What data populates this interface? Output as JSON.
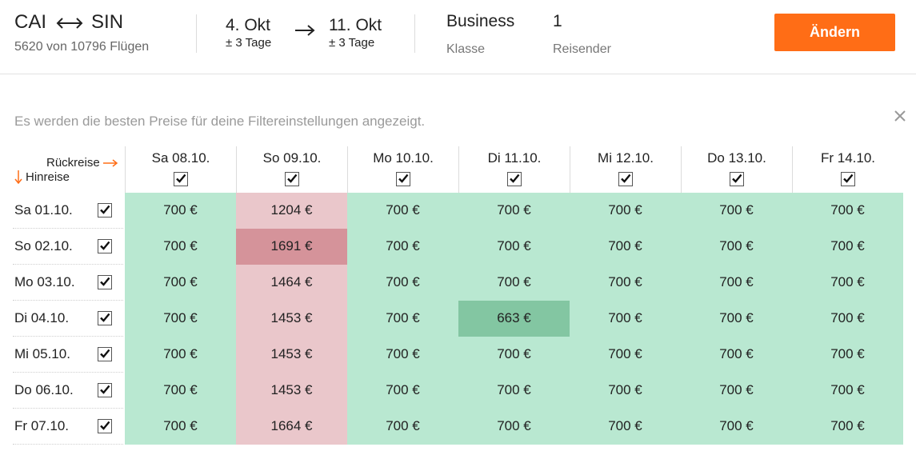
{
  "header": {
    "origin": "CAI",
    "destination": "SIN",
    "flights_count": "5620 von 10796 Flügen",
    "outbound_date": "4. Okt",
    "outbound_flex": "± 3 Tage",
    "return_date": "11. Okt",
    "return_flex": "± 3 Tage",
    "cabin_class": "Business",
    "cabin_class_label": "Klasse",
    "travelers": "1",
    "travelers_label": "Reisender",
    "change_button": "Ändern"
  },
  "notice": "Es werden die besten Preise für deine Filtereinstellungen angezeigt.",
  "grid": {
    "return_label": "Rückreise",
    "outbound_label": "Hinreise",
    "columns": [
      "Sa 08.10.",
      "So 09.10.",
      "Mo 10.10.",
      "Di 11.10.",
      "Mi 12.10.",
      "Do 13.10.",
      "Fr 14.10."
    ],
    "rows": [
      {
        "label": "Sa 01.10.",
        "prices": [
          "700 €",
          "1204 €",
          "700 €",
          "700 €",
          "700 €",
          "700 €",
          "700 €"
        ]
      },
      {
        "label": "So 02.10.",
        "prices": [
          "700 €",
          "1691 €",
          "700 €",
          "700 €",
          "700 €",
          "700 €",
          "700 €"
        ]
      },
      {
        "label": "Mo 03.10.",
        "prices": [
          "700 €",
          "1464 €",
          "700 €",
          "700 €",
          "700 €",
          "700 €",
          "700 €"
        ]
      },
      {
        "label": "Di 04.10.",
        "prices": [
          "700 €",
          "1453 €",
          "700 €",
          "663 €",
          "700 €",
          "700 €",
          "700 €"
        ]
      },
      {
        "label": "Mi 05.10.",
        "prices": [
          "700 €",
          "1453 €",
          "700 €",
          "700 €",
          "700 €",
          "700 €",
          "700 €"
        ]
      },
      {
        "label": "Do 06.10.",
        "prices": [
          "700 €",
          "1453 €",
          "700 €",
          "700 €",
          "700 €",
          "700 €",
          "700 €"
        ]
      },
      {
        "label": "Fr 07.10.",
        "prices": [
          "700 €",
          "1664 €",
          "700 €",
          "700 €",
          "700 €",
          "700 €",
          "700 €"
        ]
      }
    ],
    "colors": {
      "cheap": "#b9e8d1",
      "expensive": "#eac7cb",
      "most_expensive": "#d5939a",
      "cheapest": "#83c6a2",
      "accent": "#ff6d16"
    }
  }
}
